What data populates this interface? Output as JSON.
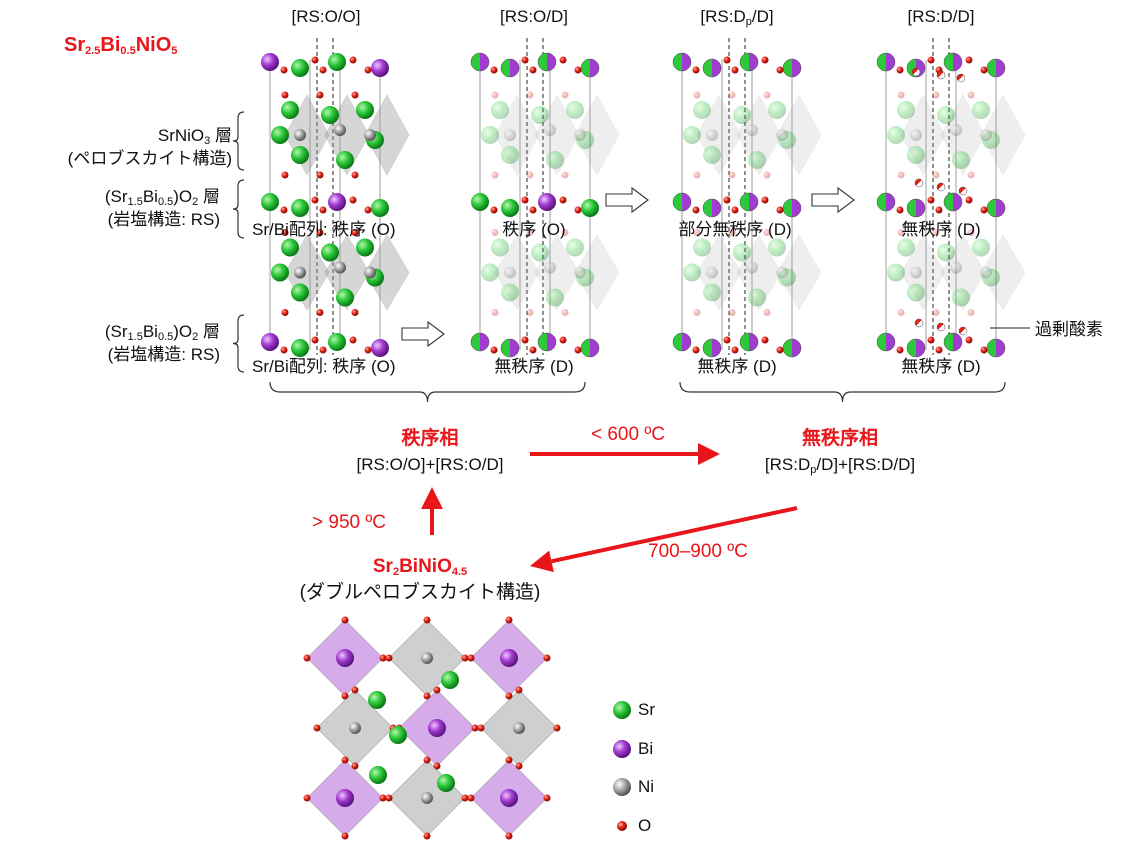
{
  "formula_top": {
    "main": "Sr",
    "s1": "2.5",
    "m2": "Bi",
    "s2": "0.5",
    "m3": "NiO",
    "s3": "5"
  },
  "structure_headers": [
    {
      "pre": "[RS:O/O]",
      "sub": "",
      "post": ""
    },
    {
      "pre": "[RS:O/D]",
      "sub": "",
      "post": ""
    },
    {
      "pre": "[RS:D",
      "sub": "p",
      "post": "/D]"
    },
    {
      "pre": "[RS:D/D]",
      "sub": "",
      "post": ""
    }
  ],
  "layer_labels": {
    "srnio3": {
      "a": "SrNiO",
      "a_sub": "3",
      "b": " 層",
      "line2": "(ペロブスカイト構造)"
    },
    "rs_layer": {
      "a": "(Sr",
      "a_sub": "1.5",
      "b": "Bi",
      "b_sub": "0.5",
      "c": ")O",
      "c_sub": "2",
      "d": " 層",
      "line2": "(岩塩構造: RS)"
    }
  },
  "ordering_labels": {
    "col1_mid": "Sr/Bi配列: 秩序 (O)",
    "col2_mid": "秩序 (O)",
    "col3_mid": "部分無秩序 (D)",
    "col4_mid": "無秩序 (D)",
    "col1_bot": "Sr/Bi配列: 秩序 (O)",
    "col2_bot": "無秩序 (D)",
    "col3_bot": "無秩序 (D)",
    "col4_bot": "無秩序 (D)"
  },
  "excess_oxygen": "過剰酸素",
  "phases": {
    "ordered": {
      "name": "秩序相",
      "formula": "[RS:O/O]+[RS:O/D]"
    },
    "disordered": {
      "name": "無秩序相",
      "pre": "[RS:D",
      "sub": "p",
      "post": "/D]+[RS:D/D]"
    }
  },
  "transitions": {
    "lt600": "< 600 ºC",
    "gt950": "> 950 ºC",
    "range": "700–900 ºC"
  },
  "double_perovskite": {
    "a": "Sr",
    "a_sub": "2",
    "b": "BiNiO",
    "b_sub": "4.5",
    "line2": "(ダブルペロブスカイト構造)"
  },
  "legend": [
    {
      "label": "Sr",
      "color": "#1bbf2a"
    },
    {
      "label": "Bi",
      "color": "#a13cd0"
    },
    {
      "label": "Ni",
      "color": "#9a9a9a"
    },
    {
      "label": "O",
      "color": "#d81b10"
    }
  ],
  "colors": {
    "accent_red": "#e8161b",
    "sr": "#1bbf2a",
    "bi": "#a13cd0",
    "ni": "#9a9a9a",
    "o": "#d81b10"
  }
}
